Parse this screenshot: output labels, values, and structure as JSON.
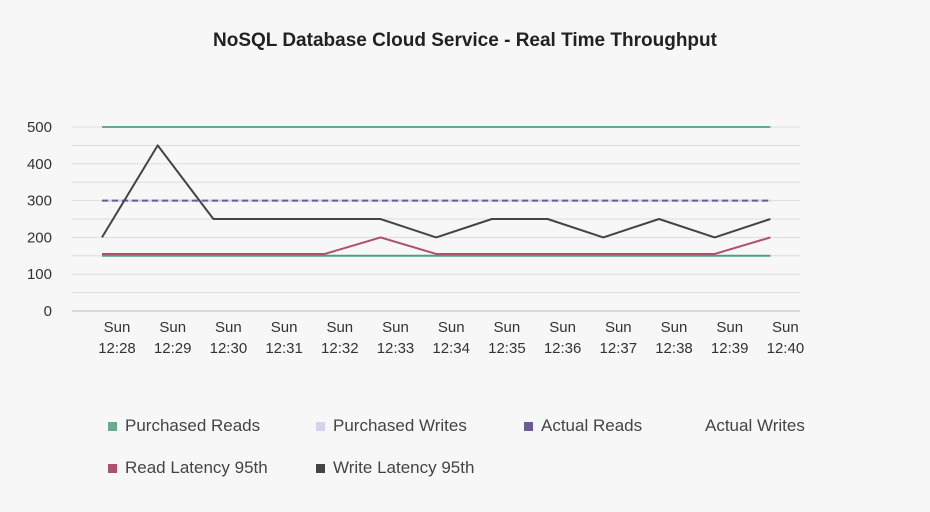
{
  "chart_data": {
    "type": "line",
    "title": "NoSQL Database Cloud Service - Real Time Throughput",
    "categories": [
      [
        "Sun",
        "12:28"
      ],
      [
        "Sun",
        "12:29"
      ],
      [
        "Sun",
        "12:30"
      ],
      [
        "Sun",
        "12:31"
      ],
      [
        "Sun",
        "12:32"
      ],
      [
        "Sun",
        "12:33"
      ],
      [
        "Sun",
        "12:34"
      ],
      [
        "Sun",
        "12:35"
      ],
      [
        "Sun",
        "12:36"
      ],
      [
        "Sun",
        "12:37"
      ],
      [
        "Sun",
        "12:38"
      ],
      [
        "Sun",
        "12:39"
      ],
      [
        "Sun",
        "12:40"
      ]
    ],
    "ylim": [
      0,
      500
    ],
    "yticks": [
      0,
      100,
      200,
      300,
      400,
      500
    ],
    "grid": true,
    "legend_placement": "bottom",
    "series": [
      {
        "name": "Purchased Reads",
        "color": "#6aaa8f",
        "style": "solid",
        "values": [
          500,
          500,
          500,
          500,
          500,
          500,
          500,
          500,
          500,
          500,
          500,
          500,
          500
        ]
      },
      {
        "name": "Purchased Writes",
        "color": "#c9c6e6",
        "style": "solid",
        "values": [
          300,
          300,
          300,
          300,
          300,
          300,
          300,
          300,
          300,
          300,
          300,
          300,
          300
        ]
      },
      {
        "name": "Actual Reads",
        "color": "#6c5b99",
        "style": "dashed",
        "values": [
          300,
          300,
          300,
          300,
          300,
          300,
          300,
          300,
          300,
          300,
          300,
          300,
          300
        ]
      },
      {
        "name": "Actual Writes",
        "color": "#4aa27a",
        "style": "solid",
        "values": [
          150,
          150,
          150,
          150,
          150,
          150,
          150,
          150,
          150,
          150,
          150,
          150,
          150
        ]
      },
      {
        "name": "Read Latency 95th",
        "color": "#b0506a",
        "style": "solid",
        "values": [
          155,
          155,
          155,
          155,
          155,
          200,
          155,
          155,
          155,
          155,
          155,
          155,
          200
        ]
      },
      {
        "name": "Write Latency 95th",
        "color": "#444444",
        "style": "solid",
        "values": [
          200,
          450,
          250,
          250,
          250,
          250,
          200,
          250,
          250,
          200,
          250,
          200,
          250
        ]
      }
    ],
    "legend": [
      {
        "label": "Purchased Reads",
        "color": "#6aaa8f"
      },
      {
        "label": "Purchased Writes",
        "color": "#d6d2ee"
      },
      {
        "label": "Actual Reads",
        "color": "#6c5b99"
      },
      {
        "label": "Actual Writes",
        "color": "#6aaa8f"
      },
      {
        "label": "Read Latency 95th",
        "color": "#b0506a"
      },
      {
        "label": "Write Latency 95th",
        "color": "#444444"
      }
    ]
  }
}
